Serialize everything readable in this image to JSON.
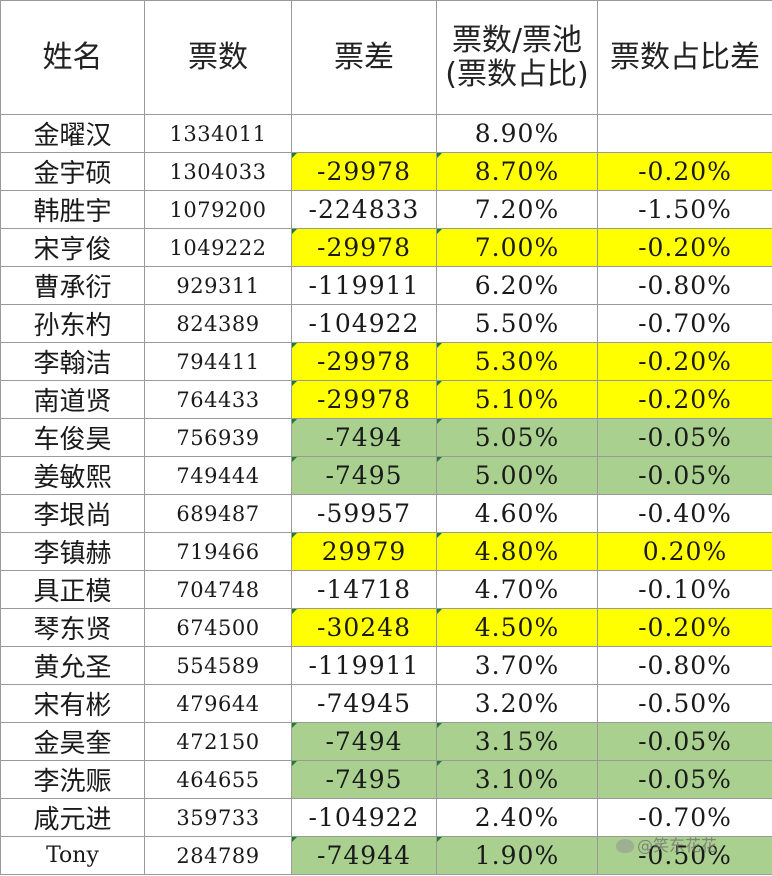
{
  "headers": [
    "姓名",
    "票数",
    "票差",
    "票数/票池(票数占比)",
    "票数占比差"
  ],
  "rows": [
    {
      "name": "金曜汉",
      "votes": "1334011",
      "diff": "",
      "pct": "8.90%",
      "pct_diff": "",
      "diff_color": "",
      "pct_color": "",
      "pct_diff_color": ""
    },
    {
      "name": "金宇硕",
      "votes": "1304033",
      "diff": "-29978",
      "pct": "8.70%",
      "pct_diff": "-0.20%",
      "diff_color": "yellow",
      "pct_color": "yellow",
      "pct_diff_color": "yellow"
    },
    {
      "name": "韩胜宇",
      "votes": "1079200",
      "diff": "-224833",
      "pct": "7.20%",
      "pct_diff": "-1.50%",
      "diff_color": "",
      "pct_color": "",
      "pct_diff_color": ""
    },
    {
      "name": "宋亨俊",
      "votes": "1049222",
      "diff": "-29978",
      "pct": "7.00%",
      "pct_diff": "-0.20%",
      "diff_color": "yellow",
      "pct_color": "yellow",
      "pct_diff_color": "yellow"
    },
    {
      "name": "曹承衍",
      "votes": "929311",
      "diff": "-119911",
      "pct": "6.20%",
      "pct_diff": "-0.80%",
      "diff_color": "",
      "pct_color": "",
      "pct_diff_color": ""
    },
    {
      "name": "孙东杓",
      "votes": "824389",
      "diff": "-104922",
      "pct": "5.50%",
      "pct_diff": "-0.70%",
      "diff_color": "",
      "pct_color": "",
      "pct_diff_color": ""
    },
    {
      "name": "李翰洁",
      "votes": "794411",
      "diff": "-29978",
      "pct": "5.30%",
      "pct_diff": "-0.20%",
      "diff_color": "yellow",
      "pct_color": "yellow",
      "pct_diff_color": "yellow"
    },
    {
      "name": "南道贤",
      "votes": "764433",
      "diff": "-29978",
      "pct": "5.10%",
      "pct_diff": "-0.20%",
      "diff_color": "yellow",
      "pct_color": "yellow",
      "pct_diff_color": "yellow"
    },
    {
      "name": "车俊昊",
      "votes": "756939",
      "diff": "-7494",
      "pct": "5.05%",
      "pct_diff": "-0.05%",
      "diff_color": "green",
      "pct_color": "green",
      "pct_diff_color": "green"
    },
    {
      "name": "姜敏熙",
      "votes": "749444",
      "diff": "-7495",
      "pct": "5.00%",
      "pct_diff": "-0.05%",
      "diff_color": "green",
      "pct_color": "green",
      "pct_diff_color": "green"
    },
    {
      "name": "李垠尚",
      "votes": "689487",
      "diff": "-59957",
      "pct": "4.60%",
      "pct_diff": "-0.40%",
      "diff_color": "",
      "pct_color": "",
      "pct_diff_color": ""
    },
    {
      "name": "李镇赫",
      "votes": "719466",
      "diff": "29979",
      "pct": "4.80%",
      "pct_diff": "0.20%",
      "diff_color": "yellow",
      "pct_color": "yellow",
      "pct_diff_color": "yellow"
    },
    {
      "name": "具正模",
      "votes": "704748",
      "diff": "-14718",
      "pct": "4.70%",
      "pct_diff": "-0.10%",
      "diff_color": "",
      "pct_color": "",
      "pct_diff_color": ""
    },
    {
      "name": "琴东贤",
      "votes": "674500",
      "diff": "-30248",
      "pct": "4.50%",
      "pct_diff": "-0.20%",
      "diff_color": "yellow",
      "pct_color": "yellow",
      "pct_diff_color": "yellow"
    },
    {
      "name": "黄允圣",
      "votes": "554589",
      "diff": "-119911",
      "pct": "3.70%",
      "pct_diff": "-0.80%",
      "diff_color": "",
      "pct_color": "",
      "pct_diff_color": ""
    },
    {
      "name": "宋有彬",
      "votes": "479644",
      "diff": "-74945",
      "pct": "3.20%",
      "pct_diff": "-0.50%",
      "diff_color": "",
      "pct_color": "",
      "pct_diff_color": ""
    },
    {
      "name": "金昊奎",
      "votes": "472150",
      "diff": "-7494",
      "pct": "3.15%",
      "pct_diff": "-0.05%",
      "diff_color": "green",
      "pct_color": "green",
      "pct_diff_color": "green"
    },
    {
      "name": "李洗赈",
      "votes": "464655",
      "diff": "-7495",
      "pct": "3.10%",
      "pct_diff": "-0.05%",
      "diff_color": "green",
      "pct_color": "green",
      "pct_diff_color": "green"
    },
    {
      "name": "咸元进",
      "votes": "359733",
      "diff": "-104922",
      "pct": "2.40%",
      "pct_diff": "-0.70%",
      "diff_color": "",
      "pct_color": "",
      "pct_diff_color": ""
    },
    {
      "name": "Tony",
      "votes": "284789",
      "diff": "-74944",
      "pct": "1.90%",
      "pct_diff": "-0.50%",
      "diff_color": "green",
      "pct_color": "green",
      "pct_diff_color": "green"
    }
  ],
  "highlight_colors": {
    "yellow": "#ffff00",
    "green": "#a9d08e"
  },
  "watermark": "@笑东花花",
  "watermark_icon": "weibo-icon"
}
